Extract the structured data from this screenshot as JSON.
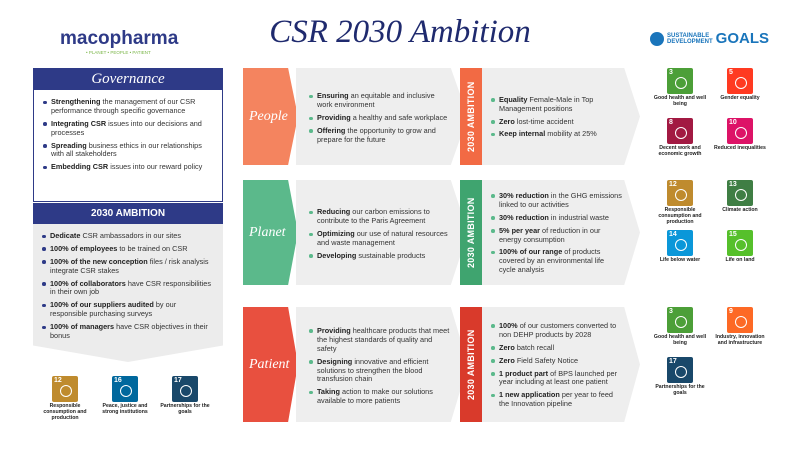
{
  "header": {
    "brand": "macopharma",
    "tagline": "• PLANET • PEOPLE • PATIENT",
    "title": "CSR 2030 Ambition",
    "sdg_logo": {
      "line1": "SUSTAINABLE",
      "line2": "DEVELOPMENT",
      "big": "GOALS"
    }
  },
  "governance": {
    "title": "Governance",
    "items": [
      {
        "bold": "Strengthening",
        "text": "the management of our CSR performance through specific governance"
      },
      {
        "bold": "Integrating CSR",
        "text": "issues into our decisions and processes"
      },
      {
        "bold": "Spreading",
        "text": "business ethics in our relationships with all stakeholders"
      },
      {
        "bold": "Embedding CSR",
        "text": "issues into our reward policy"
      }
    ]
  },
  "ambition": {
    "title": "2030 AMBITION",
    "items": [
      {
        "bold": "Dedicate",
        "text": "CSR ambassadors in our sites"
      },
      {
        "bold": "100% of employees",
        "text": "to be trained on CSR"
      },
      {
        "bold": "100% of the new conception",
        "text": "files / risk analysis integrate CSR stakes"
      },
      {
        "bold": "100% of collaborators",
        "text": "have CSR responsibilities in their own job"
      },
      {
        "bold": "100% of our suppliers audited",
        "text": "by our responsible purchasing surveys"
      },
      {
        "bold": "100% of managers",
        "text": "have CSR objectives in their bonus"
      }
    ]
  },
  "left_sdgs": [
    {
      "num": 12,
      "label": "Responsible consumption and production"
    },
    {
      "num": 16,
      "label": "Peace, justice and strong institutions"
    },
    {
      "num": 17,
      "label": "Partnerships for the goals"
    }
  ],
  "pillars": [
    {
      "name": "People",
      "actions": [
        {
          "bold": "Ensuring",
          "text": "an equitable and inclusive work environment"
        },
        {
          "bold": "Providing",
          "text": "a healthy and safe workplace"
        },
        {
          "bold": "Offering",
          "text": "the opportunity to grow and prepare for the future"
        }
      ],
      "ambition_label": "2030 AMBITION",
      "goals": [
        {
          "bold": "Equality",
          "text": "Female-Male in Top Management positions"
        },
        {
          "bold": "Zero",
          "text": "lost-time accident"
        },
        {
          "bold": "Keep internal",
          "text": "mobility at 25%"
        }
      ],
      "sdgs": [
        {
          "num": 3,
          "label": "Good health and well being"
        },
        {
          "num": 5,
          "label": "Gender equality"
        },
        {
          "num": 8,
          "label": "Decent work and economic growth"
        },
        {
          "num": 10,
          "label": "Reduced inequalities"
        }
      ]
    },
    {
      "name": "Planet",
      "actions": [
        {
          "bold": "Reducing",
          "text": "our carbon emissions to contribute to the Paris Agreement"
        },
        {
          "bold": "Optimizing",
          "text": "our use of natural resources and waste management"
        },
        {
          "bold": "Developing",
          "text": "sustainable products"
        }
      ],
      "ambition_label": "2030 AMBITION",
      "goals": [
        {
          "bold": "30% reduction",
          "text": "in the GHG emissions linked to our activities"
        },
        {
          "bold": "30% reduction",
          "text": "in industrial waste"
        },
        {
          "bold": "5% per year",
          "text": "of reduction in our energy consumption"
        },
        {
          "bold": "100% of our range",
          "text": "of products covered by an environmental life cycle analysis"
        }
      ],
      "sdgs": [
        {
          "num": 12,
          "label": "Responsible consumption and production"
        },
        {
          "num": 13,
          "label": "Climate action"
        },
        {
          "num": 14,
          "label": "Life below water"
        },
        {
          "num": 15,
          "label": "Life on land"
        }
      ]
    },
    {
      "name": "Patient",
      "actions": [
        {
          "bold": "Providing",
          "text": "healthcare products that meet the highest standards of quality and safety"
        },
        {
          "bold": "Designing",
          "text": "innovative and efficient solutions to strengthen the blood transfusion chain"
        },
        {
          "bold": "Taking",
          "text": "action to make our solutions available to more patients"
        }
      ],
      "ambition_label": "2030 AMBITION",
      "goals": [
        {
          "bold": "100%",
          "text": "of our customers converted to non DEHP products by 2028"
        },
        {
          "bold": "Zero",
          "text": "batch recall"
        },
        {
          "bold": "Zero",
          "text": "Field Safety Notice"
        },
        {
          "bold": "1 product part",
          "text": "of BPS launched per year including at least one patient"
        },
        {
          "bold": "1 new application",
          "text": "per year to feed the Innovation pipeline"
        }
      ],
      "sdgs": [
        {
          "num": 3,
          "label": "Good health and well being"
        },
        {
          "num": 9,
          "label": "Industry, innovation and infrastructure"
        },
        {
          "num": 17,
          "label": "Partnerships for the goals"
        }
      ]
    }
  ]
}
